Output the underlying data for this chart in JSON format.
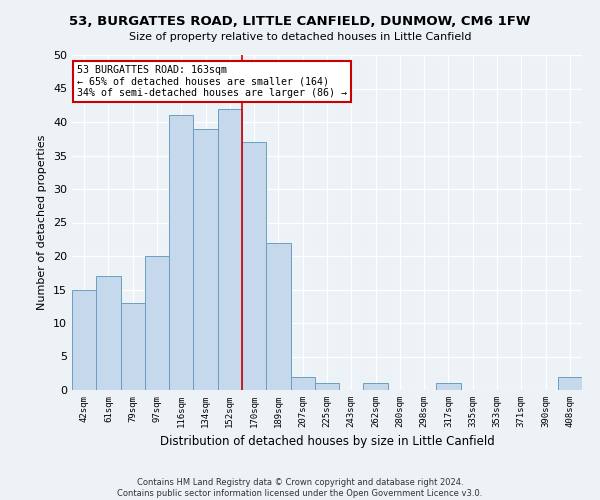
{
  "title": "53, BURGATTES ROAD, LITTLE CANFIELD, DUNMOW, CM6 1FW",
  "subtitle": "Size of property relative to detached houses in Little Canfield",
  "xlabel": "Distribution of detached houses by size in Little Canfield",
  "ylabel": "Number of detached properties",
  "bar_labels": [
    "42sqm",
    "61sqm",
    "79sqm",
    "97sqm",
    "116sqm",
    "134sqm",
    "152sqm",
    "170sqm",
    "189sqm",
    "207sqm",
    "225sqm",
    "243sqm",
    "262sqm",
    "280sqm",
    "298sqm",
    "317sqm",
    "335sqm",
    "353sqm",
    "371sqm",
    "390sqm",
    "408sqm"
  ],
  "bar_values": [
    15,
    17,
    13,
    20,
    41,
    39,
    42,
    37,
    22,
    2,
    1,
    0,
    1,
    0,
    0,
    1,
    0,
    0,
    0,
    0,
    2
  ],
  "bar_color": "#c6d9ec",
  "bar_edge_color": "#6a9fc0",
  "highlight_line_color": "#cc0000",
  "annotation_line1": "53 BURGATTES ROAD: 163sqm",
  "annotation_line2": "← 65% of detached houses are smaller (164)",
  "annotation_line3": "34% of semi-detached houses are larger (86) →",
  "annotation_box_color": "#ffffff",
  "annotation_box_edge_color": "#cc0000",
  "ylim": [
    0,
    50
  ],
  "yticks": [
    0,
    5,
    10,
    15,
    20,
    25,
    30,
    35,
    40,
    45,
    50
  ],
  "footer_line1": "Contains HM Land Registry data © Crown copyright and database right 2024.",
  "footer_line2": "Contains public sector information licensed under the Open Government Licence v3.0.",
  "bg_color": "#edf2f7",
  "plot_bg_color": "#edf2f7"
}
